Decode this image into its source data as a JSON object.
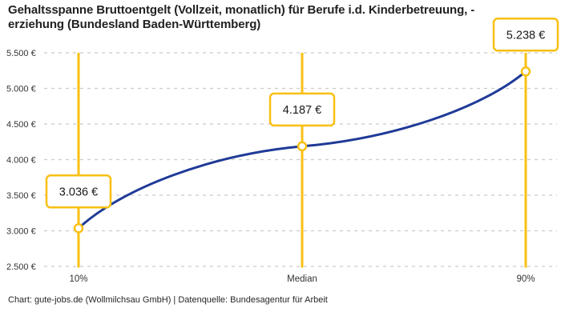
{
  "title": {
    "line1": "Gehaltsspanne Bruttoentgelt (Vollzeit, monatlich) für Berufe i.d. Kinderbetreuung, -",
    "line2": "erziehung (Bundesland Baden-Württemberg)"
  },
  "footer": "Chart: gute-jobs.de (Wollmilchsau GmbH) | Datenquelle: Bundesagentur für Arbeit",
  "colors": {
    "accent_yellow": "#F9C013",
    "line_blue": "#1F3A97",
    "grid": "#CBCBCB",
    "axis_text": "#333333",
    "label_text": "#1A1A1A",
    "box_fill": "#FFFFFF"
  },
  "chart_data": {
    "type": "line",
    "title": "Gehaltsspanne Bruttoentgelt (Vollzeit, monatlich) für Berufe i.d. Kinderbetreuung, -erziehung (Bundesland Baden-Württemberg)",
    "categories": [
      "10%",
      "Median",
      "90%"
    ],
    "values": [
      3036,
      4187,
      5238
    ],
    "point_labels": [
      "3.036 €",
      "4.187 €",
      "5.238 €"
    ],
    "xlabel": "",
    "ylabel": "",
    "ylim": [
      2500,
      5500
    ],
    "y_tick_step": 500,
    "y_tick_labels": [
      "5.500 €",
      "5.000 €",
      "4.500 €",
      "4.000 €",
      "3.500 €",
      "3.000 €",
      "2.500 €"
    ],
    "grid": "horizontal dashed",
    "legend": "none",
    "marker_style": "open circle on vertical percentile line",
    "source_note": "Chart: gute-jobs.de (Wollmilchsau GmbH) | Datenquelle: Bundesagentur für Arbeit"
  }
}
